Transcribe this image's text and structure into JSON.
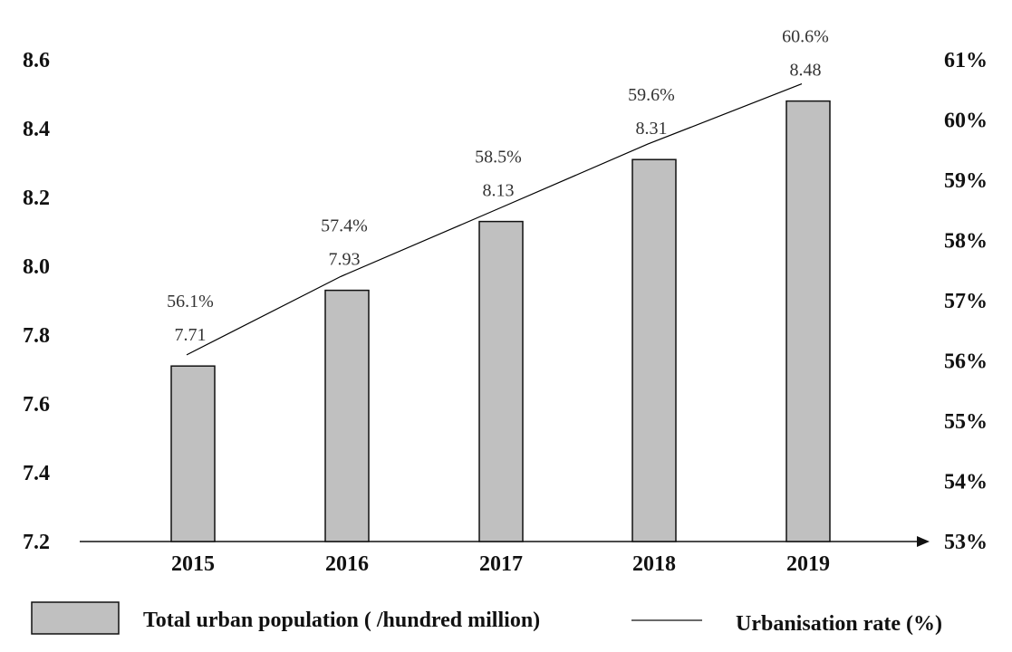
{
  "chart_data": {
    "type": "bar",
    "categories": [
      "2015",
      "2016",
      "2017",
      "2018",
      "2019"
    ],
    "series": [
      {
        "name": "Total urban population ( /hundred million)",
        "type": "bar",
        "axis": "left",
        "values": [
          7.71,
          7.93,
          8.13,
          8.31,
          8.48
        ],
        "labels": [
          "7.71",
          "7.93",
          "8.13",
          "8.31",
          "8.48"
        ],
        "color": "#c0c0c0"
      },
      {
        "name": "Urbanisation rate (%)",
        "type": "line",
        "axis": "right",
        "values": [
          56.1,
          57.4,
          58.5,
          59.6,
          60.6
        ],
        "labels": [
          "56.1%",
          "57.4%",
          "58.5%",
          "59.6%",
          "60.6%"
        ],
        "color": "#000000"
      }
    ],
    "y_left": {
      "range": [
        7.2,
        8.6
      ],
      "ticks": [
        "7.2",
        "7.4",
        "7.6",
        "7.8",
        "8.0",
        "8.2",
        "8.4",
        "8.6"
      ]
    },
    "y_right": {
      "range": [
        53,
        61
      ],
      "ticks": [
        "53%",
        "54%",
        "55%",
        "56%",
        "57%",
        "58%",
        "59%",
        "60%",
        "61%"
      ]
    },
    "grid": false,
    "legend_position": "bottom"
  }
}
